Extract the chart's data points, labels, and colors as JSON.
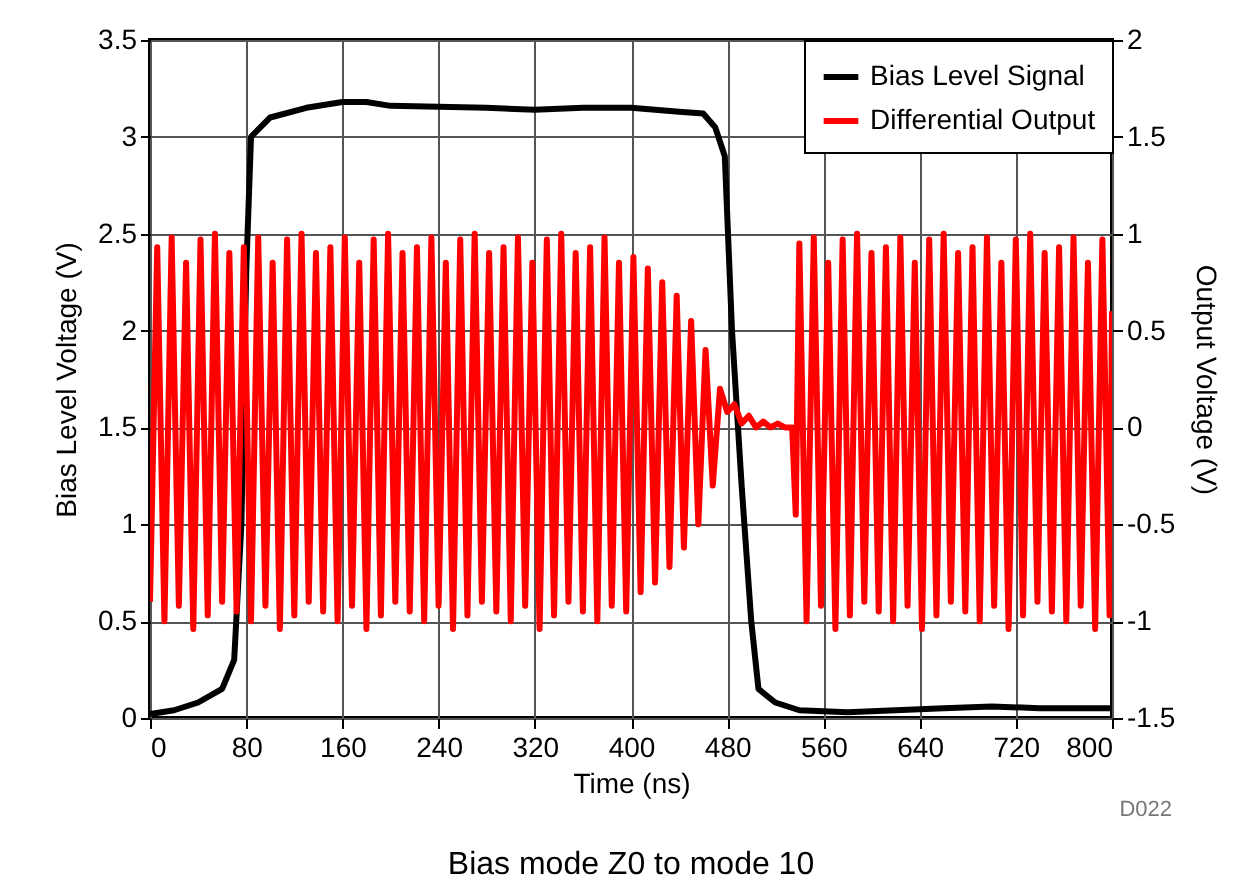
{
  "chart_data": {
    "type": "line",
    "title": "Bias mode Z0 to mode 10",
    "xlabel": "Time (ns)",
    "ylabel": "Bias Level Voltage (V)",
    "y2label": "Output Voltage (V)",
    "annotations": [
      "D022"
    ],
    "xlim": [
      0,
      800
    ],
    "xticks": [
      0,
      80,
      160,
      240,
      320,
      400,
      480,
      560,
      640,
      720,
      800
    ],
    "ylim": [
      0,
      3.5
    ],
    "yticks": [
      0,
      0.5,
      1,
      1.5,
      2,
      2.5,
      3,
      3.5
    ],
    "y2lim": [
      -1.5,
      2
    ],
    "y2ticks": [
      -1.5,
      -1,
      -0.5,
      0,
      0.5,
      1,
      1.5,
      2
    ],
    "grid": true,
    "legend": "top right",
    "marker": "none",
    "line_style": "solid",
    "series": [
      {
        "name": "Bias Level Signal",
        "color": "#000000",
        "axis": "y",
        "x": [
          0,
          20,
          40,
          60,
          70,
          76,
          80,
          84,
          100,
          130,
          160,
          180,
          200,
          280,
          320,
          360,
          400,
          440,
          460,
          470,
          478,
          484,
          492,
          500,
          506,
          520,
          540,
          580,
          620,
          660,
          700,
          740,
          800
        ],
        "values": [
          0.02,
          0.04,
          0.08,
          0.15,
          0.3,
          1.0,
          2.3,
          3.0,
          3.1,
          3.15,
          3.18,
          3.18,
          3.16,
          3.15,
          3.14,
          3.15,
          3.15,
          3.13,
          3.12,
          3.05,
          2.9,
          2.0,
          1.2,
          0.5,
          0.15,
          0.08,
          0.04,
          0.03,
          0.04,
          0.05,
          0.06,
          0.05,
          0.05
        ]
      },
      {
        "name": "Differential Output",
        "color": "#ff0000",
        "axis": "y2",
        "x": [
          0,
          6,
          12,
          18,
          24,
          30,
          36,
          42,
          48,
          54,
          60,
          66,
          72,
          78,
          84,
          90,
          96,
          102,
          108,
          114,
          120,
          126,
          132,
          138,
          144,
          150,
          156,
          162,
          168,
          174,
          180,
          186,
          192,
          198,
          204,
          210,
          216,
          222,
          228,
          234,
          240,
          246,
          252,
          258,
          264,
          270,
          276,
          282,
          288,
          294,
          300,
          306,
          312,
          318,
          324,
          330,
          336,
          342,
          348,
          354,
          360,
          366,
          372,
          378,
          384,
          390,
          396,
          402,
          408,
          414,
          420,
          426,
          432,
          438,
          444,
          450,
          456,
          462,
          468,
          474,
          480,
          486,
          492,
          498,
          504,
          510,
          516,
          522,
          528,
          534,
          537,
          540,
          546,
          552,
          558,
          564,
          570,
          576,
          582,
          588,
          594,
          600,
          606,
          612,
          618,
          624,
          630,
          636,
          642,
          648,
          654,
          660,
          666,
          672,
          678,
          684,
          690,
          696,
          702,
          708,
          714,
          720,
          726,
          732,
          738,
          744,
          750,
          756,
          762,
          768,
          774,
          780,
          786,
          792,
          798,
          800
        ],
        "values": [
          -0.9,
          0.93,
          -1.0,
          0.98,
          -0.92,
          0.85,
          -1.04,
          0.97,
          -0.97,
          1.0,
          -0.9,
          0.9,
          -0.95,
          0.93,
          -1.0,
          0.98,
          -0.92,
          0.85,
          -1.04,
          0.97,
          -0.97,
          1.0,
          -0.9,
          0.9,
          -0.95,
          0.93,
          -1.0,
          0.98,
          -0.92,
          0.85,
          -1.04,
          0.97,
          -0.97,
          1.0,
          -0.9,
          0.9,
          -0.95,
          0.93,
          -1.0,
          0.98,
          -0.92,
          0.85,
          -1.04,
          0.97,
          -0.97,
          1.0,
          -0.9,
          0.9,
          -0.95,
          0.93,
          -1.0,
          0.98,
          -0.92,
          0.85,
          -1.04,
          0.97,
          -0.97,
          1.0,
          -0.9,
          0.9,
          -0.95,
          0.93,
          -1.0,
          0.98,
          -0.92,
          0.85,
          -0.95,
          0.88,
          -0.85,
          0.82,
          -0.8,
          0.75,
          -0.72,
          0.68,
          -0.62,
          0.55,
          -0.5,
          0.4,
          -0.3,
          0.2,
          0.08,
          0.12,
          0.02,
          0.06,
          0.0,
          0.03,
          0.0,
          0.02,
          0.0,
          0.0,
          -0.45,
          0.95,
          -1.0,
          0.98,
          -0.92,
          0.85,
          -1.04,
          0.97,
          -0.97,
          1.0,
          -0.9,
          0.9,
          -0.95,
          0.93,
          -1.0,
          0.98,
          -0.92,
          0.85,
          -1.04,
          0.97,
          -0.97,
          1.0,
          -0.9,
          0.9,
          -0.95,
          0.93,
          -1.0,
          0.98,
          -0.92,
          0.85,
          -1.04,
          0.97,
          -0.97,
          1.0,
          -0.9,
          0.9,
          -0.95,
          0.93,
          -1.0,
          0.98,
          -0.92,
          0.85,
          -1.04,
          0.97,
          -0.97,
          0.6
        ]
      }
    ]
  }
}
